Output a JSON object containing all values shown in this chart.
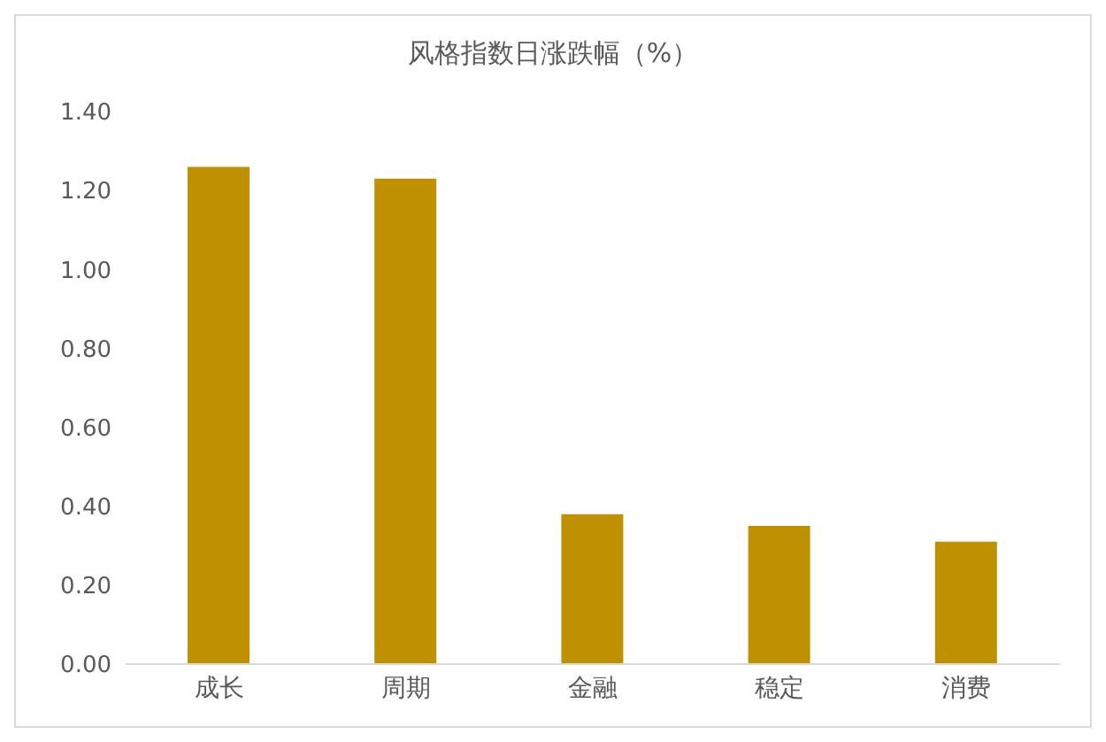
{
  "chart_data": {
    "type": "bar",
    "title": "风格指数日涨跌幅（%）",
    "categories": [
      "成长",
      "周期",
      "金融",
      "稳定",
      "消费"
    ],
    "values": [
      1.26,
      1.23,
      0.38,
      0.35,
      0.31
    ],
    "color": "#bf9000",
    "ylim": [
      0,
      1.4
    ],
    "yticks": [
      {
        "value": 0,
        "label": "0.00"
      },
      {
        "value": 0.2,
        "label": "0.20"
      },
      {
        "value": 0.4,
        "label": "0.40"
      },
      {
        "value": 0.6,
        "label": "0.60"
      },
      {
        "value": 0.8,
        "label": "0.80"
      },
      {
        "value": 1.0,
        "label": "1.00"
      },
      {
        "value": 1.2,
        "label": "1.20"
      },
      {
        "value": 1.4,
        "label": "1.40"
      }
    ],
    "grid": false,
    "legend": false
  }
}
